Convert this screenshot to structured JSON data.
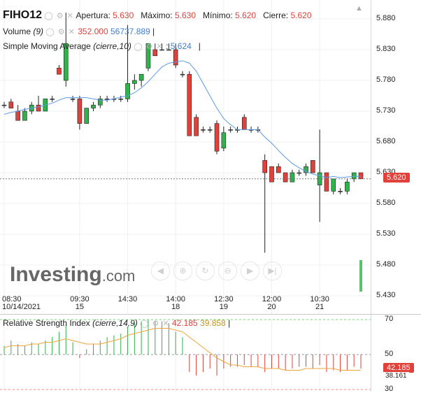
{
  "legend": {
    "ticker": "FIHO12",
    "open_label": "Apertura:",
    "open": "5.630",
    "high_label": "Máximo:",
    "high": "5.630",
    "low_label": "Mínimo:",
    "low": "5.620",
    "close_label": "Cierre:",
    "close": "5.620",
    "volume_label": "Volume",
    "volume_param": "(9)",
    "volume_value": "352.000",
    "volume_ma": "56737.889",
    "sma_label": "Simple Moving Average",
    "sma_param": "(cierre,10)",
    "sma_value": "5.624",
    "rsi_label": "Relative Strength Index",
    "rsi_param": "(cierre,14,9)",
    "rsi_value": "42.185",
    "rsi_ma_value": "39.858"
  },
  "watermark": {
    "brand": "Investing",
    "suffix": ".com"
  },
  "price_badge": "5.620",
  "rsi_badge": "42.185",
  "rsi_badge2": "38.161",
  "colors": {
    "up": "#2fb34a",
    "down": "#e0413b",
    "sma": "#5b9be6",
    "rsi": "#f2a33a",
    "badge": "#e0413b"
  },
  "chart_data": [
    {
      "type": "candlestick",
      "y_axis": {
        "ticks": [
          5.43,
          5.48,
          5.53,
          5.58,
          5.63,
          5.68,
          5.73,
          5.78,
          5.83,
          5.88
        ],
        "tick_labels": [
          "5.430",
          "5.480",
          "5.530",
          "5.580",
          "5.630",
          "5.680",
          "5.730",
          "5.780",
          "5.830",
          "5.880"
        ],
        "range": [
          5.405,
          5.905
        ]
      },
      "last_price": 5.62,
      "x_axis": {
        "ticks": [
          {
            "time": "08:30",
            "date": "10/14/2021",
            "index": 0
          },
          {
            "time": "09:30",
            "date": "15",
            "index": 11
          },
          {
            "time": "14:30",
            "date": "",
            "index": 18
          },
          {
            "time": "14:00",
            "date": "18",
            "index": 25
          },
          {
            "time": "12:30",
            "date": "19",
            "index": 32
          },
          {
            "time": "12:00",
            "date": "20",
            "index": 39
          },
          {
            "time": "10:30",
            "date": "21",
            "index": 46
          }
        ]
      },
      "candles": [
        {
          "o": 5.74,
          "h": 5.745,
          "l": 5.735,
          "c": 5.74
        },
        {
          "o": 5.745,
          "h": 5.75,
          "l": 5.735,
          "c": 5.735
        },
        {
          "o": 5.73,
          "h": 5.74,
          "l": 5.715,
          "c": 5.715
        },
        {
          "o": 5.715,
          "h": 5.735,
          "l": 5.715,
          "c": 5.73
        },
        {
          "o": 5.73,
          "h": 5.745,
          "l": 5.725,
          "c": 5.74
        },
        {
          "o": 5.74,
          "h": 5.755,
          "l": 5.73,
          "c": 5.73
        },
        {
          "o": 5.73,
          "h": 5.75,
          "l": 5.73,
          "c": 5.75
        },
        {
          "o": 5.75,
          "h": 5.755,
          "l": 5.745,
          "c": 5.75
        },
        {
          "o": 5.8,
          "h": 5.805,
          "l": 5.79,
          "c": 5.79
        },
        {
          "o": 5.78,
          "h": 5.89,
          "l": 5.77,
          "c": 5.84
        },
        {
          "o": 5.75,
          "h": 5.755,
          "l": 5.745,
          "c": 5.75
        },
        {
          "o": 5.75,
          "h": 5.755,
          "l": 5.7,
          "c": 5.71
        },
        {
          "o": 5.71,
          "h": 5.735,
          "l": 5.71,
          "c": 5.735
        },
        {
          "o": 5.735,
          "h": 5.745,
          "l": 5.73,
          "c": 5.74
        },
        {
          "o": 5.74,
          "h": 5.755,
          "l": 5.735,
          "c": 5.75
        },
        {
          "o": 5.75,
          "h": 5.755,
          "l": 5.745,
          "c": 5.75
        },
        {
          "o": 5.75,
          "h": 5.755,
          "l": 5.745,
          "c": 5.75
        },
        {
          "o": 5.75,
          "h": 5.755,
          "l": 5.745,
          "c": 5.75
        },
        {
          "o": 5.75,
          "h": 5.87,
          "l": 5.745,
          "c": 5.775
        },
        {
          "o": 5.775,
          "h": 5.79,
          "l": 5.765,
          "c": 5.78
        },
        {
          "o": 5.78,
          "h": 5.79,
          "l": 5.77,
          "c": 5.79
        },
        {
          "o": 5.8,
          "h": 5.84,
          "l": 5.795,
          "c": 5.84
        },
        {
          "o": 5.83,
          "h": 5.84,
          "l": 5.82,
          "c": 5.82
        },
        {
          "o": 5.83,
          "h": 5.84,
          "l": 5.83,
          "c": 5.83
        },
        {
          "o": 5.83,
          "h": 5.84,
          "l": 5.83,
          "c": 5.83
        },
        {
          "o": 5.83,
          "h": 5.84,
          "l": 5.8,
          "c": 5.805
        },
        {
          "o": 5.79,
          "h": 5.795,
          "l": 5.785,
          "c": 5.79
        },
        {
          "o": 5.79,
          "h": 5.795,
          "l": 5.69,
          "c": 5.69
        },
        {
          "o": 5.72,
          "h": 5.725,
          "l": 5.69,
          "c": 5.69
        },
        {
          "o": 5.7,
          "h": 5.705,
          "l": 5.695,
          "c": 5.7
        },
        {
          "o": 5.7,
          "h": 5.705,
          "l": 5.695,
          "c": 5.7
        },
        {
          "o": 5.71,
          "h": 5.715,
          "l": 5.66,
          "c": 5.665
        },
        {
          "o": 5.67,
          "h": 5.705,
          "l": 5.665,
          "c": 5.695
        },
        {
          "o": 5.7,
          "h": 5.705,
          "l": 5.695,
          "c": 5.7
        },
        {
          "o": 5.7,
          "h": 5.705,
          "l": 5.695,
          "c": 5.7
        },
        {
          "o": 5.72,
          "h": 5.725,
          "l": 5.7,
          "c": 5.7
        },
        {
          "o": 5.7,
          "h": 5.705,
          "l": 5.695,
          "c": 5.7
        },
        {
          "o": 5.7,
          "h": 5.705,
          "l": 5.695,
          "c": 5.7
        },
        {
          "o": 5.65,
          "h": 5.66,
          "l": 5.5,
          "c": 5.63
        },
        {
          "o": 5.64,
          "h": 5.64,
          "l": 5.615,
          "c": 5.615
        },
        {
          "o": 5.64,
          "h": 5.645,
          "l": 5.63,
          "c": 5.63
        },
        {
          "o": 5.63,
          "h": 5.63,
          "l": 5.615,
          "c": 5.615
        },
        {
          "o": 5.615,
          "h": 5.635,
          "l": 5.615,
          "c": 5.63
        },
        {
          "o": 5.63,
          "h": 5.635,
          "l": 5.625,
          "c": 5.63
        },
        {
          "o": 5.63,
          "h": 5.645,
          "l": 5.625,
          "c": 5.64
        },
        {
          "o": 5.65,
          "h": 5.65,
          "l": 5.63,
          "c": 5.63
        },
        {
          "o": 5.61,
          "h": 5.7,
          "l": 5.55,
          "c": 5.63
        },
        {
          "o": 5.63,
          "h": 5.63,
          "l": 5.6,
          "c": 5.6
        },
        {
          "o": 5.6,
          "h": 5.62,
          "l": 5.595,
          "c": 5.62
        },
        {
          "o": 5.6,
          "h": 5.605,
          "l": 5.595,
          "c": 5.6
        },
        {
          "o": 5.6,
          "h": 5.62,
          "l": 5.595,
          "c": 5.615
        },
        {
          "o": 5.62,
          "h": 5.63,
          "l": 5.615,
          "c": 5.63
        },
        {
          "o": 5.63,
          "h": 5.63,
          "l": 5.62,
          "c": 5.62
        }
      ],
      "sma": [
        5.725,
        5.728,
        5.73,
        5.733,
        5.735,
        5.737,
        5.74,
        5.743,
        5.748,
        5.752,
        5.752,
        5.752,
        5.752,
        5.75,
        5.748,
        5.748,
        5.75,
        5.753,
        5.755,
        5.76,
        5.768,
        5.778,
        5.79,
        5.802,
        5.808,
        5.81,
        5.812,
        5.808,
        5.795,
        5.775,
        5.755,
        5.735,
        5.718,
        5.708,
        5.7,
        5.7,
        5.7,
        5.7,
        5.688,
        5.678,
        5.666,
        5.655,
        5.645,
        5.638,
        5.632,
        5.628,
        5.625,
        5.622,
        5.624,
        5.622,
        5.623,
        5.624,
        5.624
      ],
      "volume": [
        0,
        0,
        0,
        0,
        0,
        0,
        0,
        0,
        0,
        0,
        0,
        0,
        0,
        0,
        0,
        0,
        0,
        0,
        0,
        0,
        0,
        0,
        0,
        0,
        0,
        0,
        0,
        0,
        0,
        0,
        0,
        0,
        0,
        0,
        0,
        0,
        0,
        0,
        0,
        0,
        0,
        0,
        0,
        0,
        0,
        0,
        0,
        0,
        0,
        0,
        0,
        0,
        352
      ]
    },
    {
      "type": "line",
      "name": "Relative Strength Index",
      "y_axis": {
        "ticks": [
          30,
          50,
          70
        ],
        "tick_labels": [
          "30",
          "50",
          "70"
        ],
        "range": [
          30,
          70
        ]
      },
      "rsi": [
        55,
        58,
        56,
        55,
        57,
        56,
        58,
        60,
        63,
        67,
        57,
        48,
        53,
        56,
        58,
        60,
        61,
        62,
        66,
        68,
        69,
        70,
        69,
        69,
        68,
        63,
        60,
        40,
        38,
        40,
        42,
        38,
        42,
        43,
        43,
        44,
        43,
        43,
        40,
        42,
        42,
        41,
        42,
        43,
        43,
        42,
        44,
        40,
        41,
        40,
        41,
        43,
        42
      ],
      "rsi_ma": [
        54,
        55,
        55,
        55,
        56,
        56,
        57,
        57,
        58,
        59,
        58,
        57,
        56,
        56,
        56,
        57,
        58,
        59,
        61,
        62,
        63,
        64,
        65,
        65,
        65,
        64,
        63,
        60,
        57,
        54,
        51,
        48,
        46,
        44,
        44,
        43,
        43,
        43,
        42,
        42,
        42,
        41,
        41,
        41,
        42,
        42,
        42,
        42,
        42,
        41,
        41,
        41,
        41
      ]
    }
  ]
}
